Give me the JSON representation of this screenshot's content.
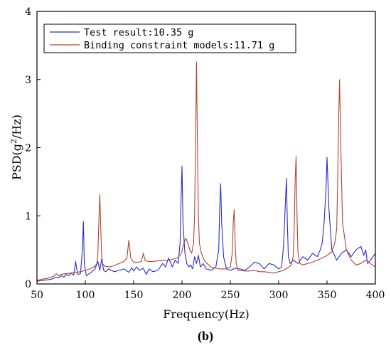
{
  "chart_data": {
    "type": "line",
    "panel_label": "(b)",
    "xlabel": "Frequency(Hz)",
    "ylabel": "PSD(g²/Hz)",
    "ylabel_base": "PSD(g",
    "ylabel_sup": "2",
    "ylabel_tail": "/Hz)",
    "xlim": [
      50,
      400
    ],
    "ylim": [
      0,
      4
    ],
    "xticks": [
      50,
      100,
      150,
      200,
      250,
      300,
      350,
      400
    ],
    "yticks": [
      0,
      1,
      2,
      3,
      4
    ],
    "grid": false,
    "legend_position": "top-left",
    "series": [
      {
        "name": "Test result:10.35 g",
        "color": "#2b2bd0",
        "x": [
          50,
          55,
          60,
          65,
          70,
          72,
          75,
          78,
          80,
          83,
          85,
          88,
          90,
          92,
          95,
          97,
          98,
          99,
          101,
          103,
          106,
          110,
          113,
          115,
          117,
          119,
          121,
          124,
          127,
          130,
          135,
          140,
          145,
          148,
          150,
          153,
          156,
          160,
          163,
          166,
          170,
          175,
          180,
          183,
          186,
          190,
          193,
          196,
          198,
          199,
          200,
          201,
          203,
          205,
          207,
          209,
          211,
          213,
          215,
          217,
          219,
          222,
          225,
          230,
          235,
          238,
          239,
          240,
          241,
          243,
          246,
          250,
          255,
          260,
          265,
          270,
          275,
          280,
          285,
          290,
          295,
          300,
          303,
          305,
          307,
          308,
          309,
          310,
          312,
          315,
          320,
          325,
          330,
          335,
          340,
          343,
          345,
          347,
          349,
          350,
          352,
          355,
          360,
          365,
          370,
          375,
          380,
          385,
          388,
          390,
          392,
          395,
          400
        ],
        "y": [
          0.04,
          0.05,
          0.06,
          0.07,
          0.1,
          0.09,
          0.12,
          0.1,
          0.14,
          0.12,
          0.16,
          0.13,
          0.33,
          0.14,
          0.15,
          0.5,
          0.92,
          0.3,
          0.12,
          0.14,
          0.17,
          0.22,
          0.33,
          0.2,
          0.37,
          0.2,
          0.18,
          0.22,
          0.2,
          0.18,
          0.2,
          0.22,
          0.17,
          0.24,
          0.19,
          0.25,
          0.2,
          0.23,
          0.14,
          0.22,
          0.18,
          0.2,
          0.3,
          0.25,
          0.38,
          0.25,
          0.35,
          0.3,
          0.6,
          1.2,
          1.73,
          0.9,
          0.45,
          0.3,
          0.25,
          0.28,
          0.22,
          0.4,
          0.3,
          0.42,
          0.25,
          0.3,
          0.22,
          0.2,
          0.25,
          0.5,
          1.1,
          1.47,
          0.9,
          0.4,
          0.22,
          0.2,
          0.23,
          0.22,
          0.2,
          0.25,
          0.32,
          0.3,
          0.22,
          0.3,
          0.28,
          0.22,
          0.25,
          0.55,
          1.2,
          1.55,
          0.9,
          0.4,
          0.3,
          0.35,
          0.3,
          0.4,
          0.35,
          0.45,
          0.4,
          0.5,
          0.6,
          0.9,
          1.4,
          1.86,
          1.1,
          0.5,
          0.35,
          0.45,
          0.5,
          0.4,
          0.5,
          0.55,
          0.42,
          0.5,
          0.3,
          0.35,
          0.45
        ]
      },
      {
        "name": "Binding constraint models:11.71 g",
        "color": "#b5432d",
        "x": [
          50,
          55,
          60,
          65,
          68,
          70,
          72,
          75,
          80,
          85,
          90,
          95,
          100,
          105,
          110,
          112,
          113,
          114,
          115,
          116,
          117,
          118,
          120,
          125,
          130,
          135,
          140,
          143,
          145,
          147,
          150,
          155,
          158,
          160,
          162,
          165,
          170,
          175,
          180,
          185,
          190,
          195,
          198,
          200,
          202,
          204,
          206,
          208,
          210,
          212,
          213,
          214,
          215,
          216,
          217,
          218,
          220,
          223,
          226,
          230,
          235,
          240,
          245,
          250,
          252,
          253,
          254,
          255,
          256,
          258,
          260,
          265,
          270,
          275,
          280,
          285,
          290,
          295,
          300,
          305,
          310,
          313,
          315,
          316,
          317,
          318,
          319,
          320,
          322,
          325,
          330,
          335,
          340,
          345,
          350,
          355,
          358,
          360,
          361,
          362,
          363,
          364,
          366,
          370,
          375,
          380,
          385,
          390,
          395,
          400
        ],
        "y": [
          0.05,
          0.07,
          0.08,
          0.1,
          0.12,
          0.15,
          0.12,
          0.14,
          0.15,
          0.16,
          0.17,
          0.18,
          0.2,
          0.22,
          0.26,
          0.3,
          0.45,
          0.9,
          1.31,
          0.8,
          0.4,
          0.3,
          0.26,
          0.25,
          0.27,
          0.3,
          0.33,
          0.38,
          0.64,
          0.38,
          0.32,
          0.32,
          0.33,
          0.45,
          0.34,
          0.33,
          0.33,
          0.34,
          0.34,
          0.35,
          0.36,
          0.38,
          0.42,
          0.48,
          0.6,
          0.67,
          0.6,
          0.5,
          0.45,
          0.6,
          1.0,
          2.0,
          3.26,
          2.0,
          1.0,
          0.6,
          0.45,
          0.35,
          0.3,
          0.25,
          0.23,
          0.22,
          0.22,
          0.25,
          0.45,
          0.9,
          1.09,
          0.6,
          0.3,
          0.2,
          0.2,
          0.19,
          0.19,
          0.2,
          0.18,
          0.18,
          0.17,
          0.16,
          0.18,
          0.2,
          0.24,
          0.28,
          0.4,
          0.8,
          1.5,
          1.87,
          1.0,
          0.45,
          0.3,
          0.28,
          0.3,
          0.32,
          0.35,
          0.38,
          0.42,
          0.47,
          0.6,
          0.8,
          1.5,
          2.4,
          3.0,
          2.2,
          0.9,
          0.5,
          0.35,
          0.28,
          0.3,
          0.35,
          0.3,
          0.25
        ]
      }
    ]
  }
}
